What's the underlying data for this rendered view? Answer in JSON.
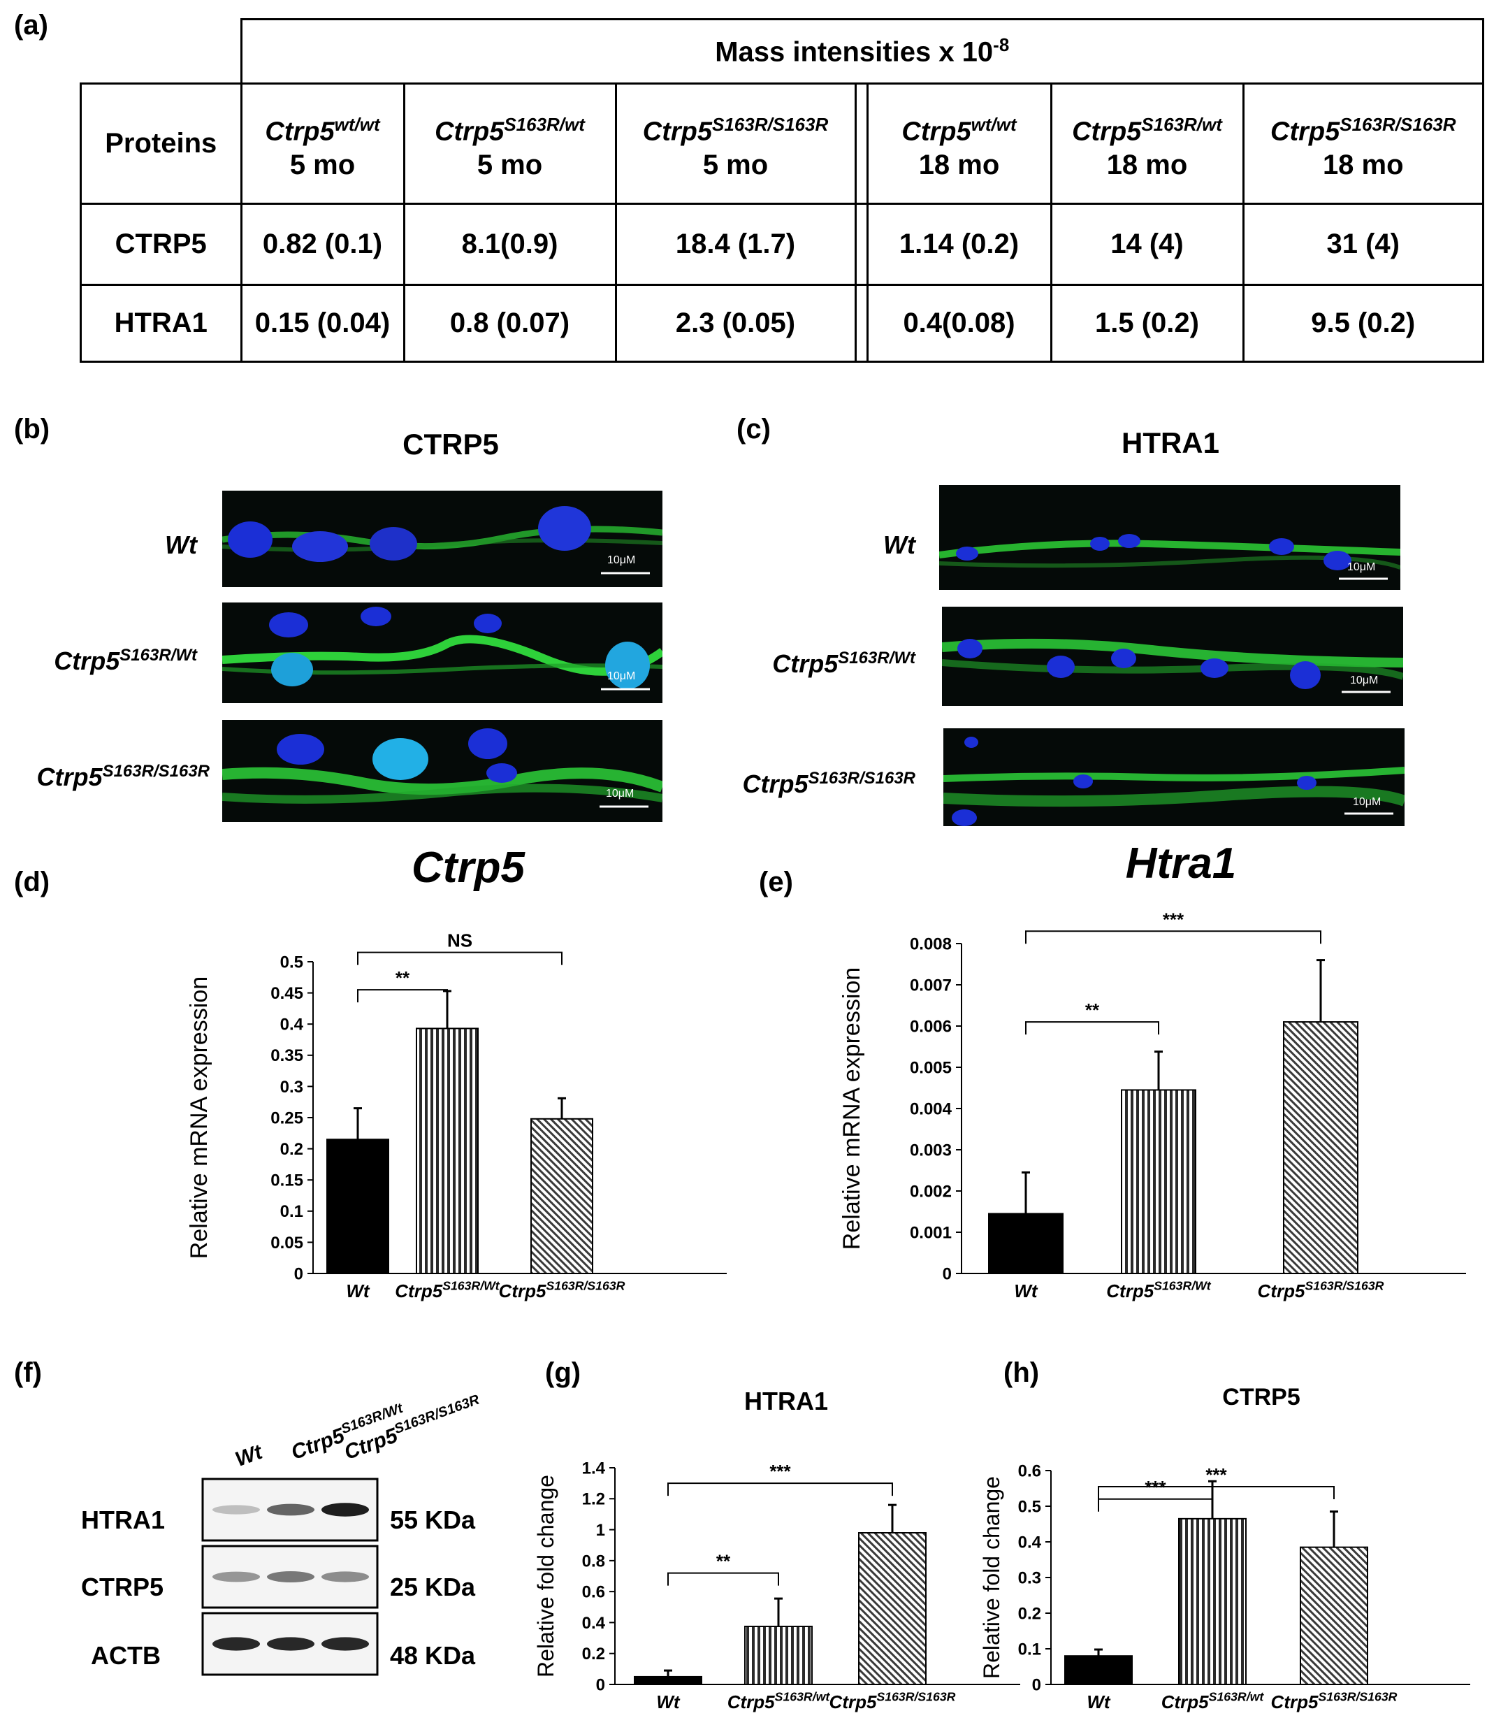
{
  "panel_labels": {
    "a": "(a)",
    "b": "(b)",
    "c": "(c)",
    "d": "(d)",
    "e": "(e)",
    "f": "(f)",
    "g": "(g)",
    "h": "(h)"
  },
  "table": {
    "header_main": "Mass intensities x 10",
    "header_exp": "-8",
    "proteins_label": "Proteins",
    "columns": [
      {
        "gene": "Ctrp5",
        "sup": "wt/wt",
        "age": "5 mo"
      },
      {
        "gene": "Ctrp5",
        "sup": "S163R/wt",
        "age": "5 mo"
      },
      {
        "gene": "Ctrp5",
        "sup": "S163R/S163R",
        "age": "5 mo"
      },
      {
        "gene": "Ctrp5",
        "sup": "wt/wt",
        "age": "18 mo"
      },
      {
        "gene": "Ctrp5",
        "sup": "S163R/wt",
        "age": "18 mo"
      },
      {
        "gene": "Ctrp5",
        "sup": "S163R/S163R",
        "age": "18 mo"
      }
    ],
    "rows": [
      {
        "protein": "CTRP5",
        "values": [
          "0.82 (0.1)",
          "8.1(0.9)",
          "18.4 (1.7)",
          "1.14 (0.2)",
          "14 (4)",
          "31 (4)"
        ]
      },
      {
        "protein": "HTRA1",
        "values": [
          "0.15 (0.04)",
          "0.8 (0.07)",
          "2.3 (0.05)",
          "0.4(0.08)",
          "1.5 (0.2)",
          "9.5 (0.2)"
        ]
      }
    ]
  },
  "micro_b": {
    "title": "CTRP5",
    "rows": [
      {
        "gene": "Wt",
        "sup": ""
      },
      {
        "gene": "Ctrp5",
        "sup": "S163R/Wt"
      },
      {
        "gene": "Ctrp5",
        "sup": "S163R/S163R"
      }
    ],
    "scale_bar": "10μM"
  },
  "micro_c": {
    "title": "HTRA1",
    "rows": [
      {
        "gene": "Wt",
        "sup": ""
      },
      {
        "gene": "Ctrp5",
        "sup": "S163R/Wt"
      },
      {
        "gene": "Ctrp5",
        "sup": "S163R/S163R"
      }
    ],
    "scale_bar": "10μM"
  },
  "blot": {
    "columns": [
      {
        "gene": "Wt",
        "sup": ""
      },
      {
        "gene": "Ctrp5",
        "sup": "S163R/Wt"
      },
      {
        "gene": "Ctrp5",
        "sup": "S163R/S163R"
      }
    ],
    "bands": [
      {
        "protein": "HTRA1",
        "size": "55 KDa",
        "intensity": [
          0.15,
          0.6,
          0.95
        ]
      },
      {
        "protein": "CTRP5",
        "size": "25 KDa",
        "intensity": [
          0.35,
          0.5,
          0.4
        ]
      },
      {
        "protein": "ACTB",
        "size": "48 KDa",
        "intensity": [
          0.9,
          0.9,
          0.9
        ]
      }
    ]
  },
  "chart_data": [
    {
      "id": "d",
      "type": "bar",
      "title": "Ctrp5",
      "ylabel": "Relative mRNA expression",
      "ylim": [
        0,
        0.5
      ],
      "yticks": [
        "0",
        "0.05",
        "0.1",
        "0.15",
        "0.2",
        "0.25",
        "0.3",
        "0.35",
        "0.4",
        "0.45",
        "0.5"
      ],
      "categories": [
        {
          "gene": "Wt",
          "sup": ""
        },
        {
          "gene": "Ctrp5",
          "sup": "S163R/Wt"
        },
        {
          "gene": "Ctrp5",
          "sup": "S163R/S163R"
        }
      ],
      "values": [
        0.215,
        0.393,
        0.248
      ],
      "errors": [
        0.05,
        0.06,
        0.033
      ],
      "brackets": [
        {
          "from": 0,
          "to": 1,
          "y": 0.455,
          "label": "**"
        },
        {
          "from": 0,
          "to": 2,
          "y": 0.515,
          "label": "NS"
        }
      ]
    },
    {
      "id": "e",
      "type": "bar",
      "title": "Htra1",
      "ylabel": "Relative mRNA expression",
      "ylim": [
        0,
        0.008
      ],
      "yticks": [
        "0",
        "0.001",
        "0.002",
        "0.003",
        "0.004",
        "0.005",
        "0.006",
        "0.007",
        "0.008"
      ],
      "categories": [
        {
          "gene": "Wt",
          "sup": ""
        },
        {
          "gene": "Ctrp5",
          "sup": "S163R/Wt"
        },
        {
          "gene": "Ctrp5",
          "sup": "S163R/S163R"
        }
      ],
      "values": [
        0.00145,
        0.00445,
        0.0061
      ],
      "errors": [
        0.001,
        0.00093,
        0.0015
      ],
      "brackets": [
        {
          "from": 0,
          "to": 1,
          "y": 0.0061,
          "label": "**"
        },
        {
          "from": 0,
          "to": 2,
          "y": 0.0083,
          "label": "***"
        }
      ]
    },
    {
      "id": "g",
      "type": "bar",
      "title": "HTRA1",
      "ylabel": "Relative fold change",
      "ylim": [
        0,
        1.4
      ],
      "yticks": [
        "0",
        "0.2",
        "0.4",
        "0.6",
        "0.8",
        "1",
        "1.2",
        "1.4"
      ],
      "categories": [
        {
          "gene": "Wt",
          "sup": ""
        },
        {
          "gene": "Ctrp5",
          "sup": "S163R/wt"
        },
        {
          "gene": "Ctrp5",
          "sup": "S163R/S163R"
        }
      ],
      "values": [
        0.05,
        0.375,
        0.98
      ],
      "errors": [
        0.04,
        0.18,
        0.18
      ],
      "brackets": [
        {
          "from": 0,
          "to": 1,
          "y": 0.72,
          "label": "**"
        },
        {
          "from": 0,
          "to": 2,
          "y": 1.3,
          "label": "***"
        }
      ]
    },
    {
      "id": "h",
      "type": "bar",
      "title": "CTRP5",
      "ylabel": "Relative fold change",
      "ylim": [
        0,
        0.6
      ],
      "yticks": [
        "0",
        "0.1",
        "0.2",
        "0.3",
        "0.4",
        "0.5",
        "0.6"
      ],
      "categories": [
        {
          "gene": "Wt",
          "sup": ""
        },
        {
          "gene": "Ctrp5",
          "sup": "S163R/wt"
        },
        {
          "gene": "Ctrp5",
          "sup": "S163R/S163R"
        }
      ],
      "values": [
        0.08,
        0.465,
        0.385
      ],
      "errors": [
        0.018,
        0.105,
        0.1
      ],
      "brackets": [
        {
          "from": 0,
          "to": 1,
          "y": 0.52,
          "label": "***"
        },
        {
          "from": 0,
          "to": 2,
          "y": 0.555,
          "label": "***"
        }
      ]
    }
  ]
}
